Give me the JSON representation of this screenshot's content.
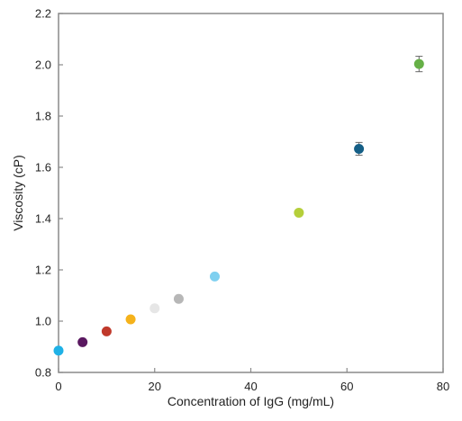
{
  "chart_data": {
    "type": "scatter",
    "title": "",
    "xlabel": "Concentration of IgG (mg/mL)",
    "ylabel": "Viscosity (cP)",
    "xlim": [
      0,
      80
    ],
    "ylim": [
      0.8,
      2.2
    ],
    "xticks": [
      "0",
      "20",
      "40",
      "60",
      "80"
    ],
    "yticks": [
      "0.8",
      "1.0",
      "1.2",
      "1.4",
      "1.6",
      "1.8",
      "2.0",
      "2.2"
    ],
    "grid": false,
    "legend": "none",
    "frame_color": "#8a8a8a",
    "points": [
      {
        "x": 0,
        "y": 0.885,
        "color": "#1fb1e6"
      },
      {
        "x": 5,
        "y": 0.918,
        "color": "#5a1860"
      },
      {
        "x": 10,
        "y": 0.96,
        "color": "#c0392b"
      },
      {
        "x": 15,
        "y": 1.007,
        "color": "#f5b21b"
      },
      {
        "x": 20,
        "y": 1.05,
        "color": "#e6e6e6"
      },
      {
        "x": 25,
        "y": 1.087,
        "color": "#b7b7b7"
      },
      {
        "x": 32.5,
        "y": 1.174,
        "color": "#7fd0f0"
      },
      {
        "x": 50,
        "y": 1.423,
        "color": "#b5cf3a",
        "err": 0.01
      },
      {
        "x": 62.5,
        "y": 1.672,
        "color": "#155f86",
        "err": 0.025
      },
      {
        "x": 75,
        "y": 2.003,
        "color": "#66b047",
        "err": 0.03
      }
    ]
  }
}
